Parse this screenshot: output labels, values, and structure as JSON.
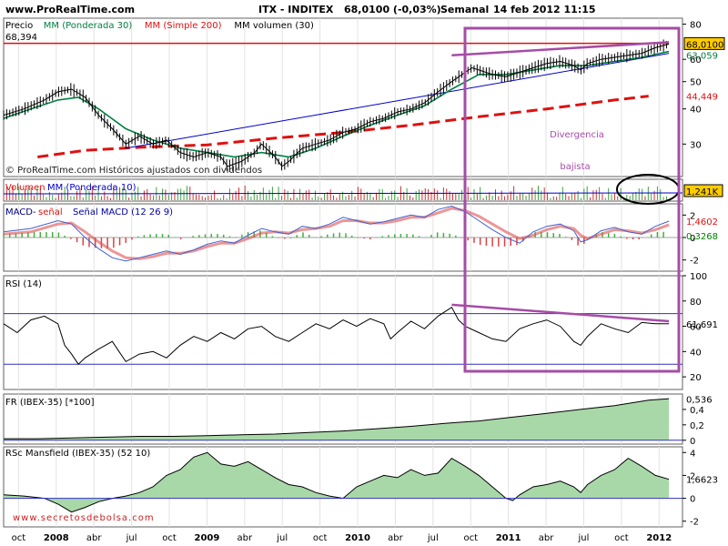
{
  "header": {
    "site": "www.ProRealTime.com",
    "title": "ITX - INDITEX",
    "price": "68,0100 (-0,03%)",
    "period": "Semanal",
    "datetime": "14 feb 2012 11:15"
  },
  "watermark_top": "© ProRealTime.com  Históricos ajustados con dividendos",
  "watermark_bottom": "www.secretosdebolsa.com",
  "annotation": {
    "line1": "Divergencia",
    "line2": "bajista",
    "color": "#a64ca6"
  },
  "colors": {
    "price": "#000000",
    "mm30": "#008040",
    "mm200": "#e01010",
    "trend": "#0000cc",
    "purple": "#a64ca6",
    "price_badge": "#ffcc00",
    "area_fill": "#a8d8a8",
    "macd_hist_pos": "#40b040",
    "macd_hist_neg": "#e04040"
  },
  "x_axis": {
    "ticks": [
      {
        "label": "oct",
        "bold": false
      },
      {
        "label": "2008",
        "bold": true
      },
      {
        "label": "abr",
        "bold": false
      },
      {
        "label": "jul",
        "bold": false
      },
      {
        "label": "oct",
        "bold": false
      },
      {
        "label": "2009",
        "bold": true
      },
      {
        "label": "abr",
        "bold": false
      },
      {
        "label": "jul",
        "bold": false
      },
      {
        "label": "oct",
        "bold": false
      },
      {
        "label": "2010",
        "bold": true
      },
      {
        "label": "abr",
        "bold": false
      },
      {
        "label": "jul",
        "bold": false
      },
      {
        "label": "oct",
        "bold": false
      },
      {
        "label": "2011",
        "bold": true
      },
      {
        "label": "abr",
        "bold": false
      },
      {
        "label": "jul",
        "bold": false
      },
      {
        "label": "oct",
        "bold": false
      },
      {
        "label": "2012",
        "bold": true
      }
    ]
  },
  "chart_data": [
    {
      "type": "line",
      "legend": [
        "Precio",
        "MM (Ponderada 30)",
        "MM (Simple 200)",
        "MM volumen (30)"
      ],
      "y_ticks": [
        "80",
        "60",
        "50",
        "40",
        "30"
      ],
      "level_label": "68,394",
      "last_price": "68,0100",
      "ma_label": "63,059",
      "ma200_label": "44,449",
      "log_scale": true,
      "ylim": [
        23,
        84
      ],
      "price_points": [
        [
          0,
          38
        ],
        [
          3,
          40
        ],
        [
          6,
          43
        ],
        [
          8,
          46
        ],
        [
          10,
          47
        ],
        [
          12,
          44
        ],
        [
          14,
          38
        ],
        [
          16,
          34
        ],
        [
          18,
          30
        ],
        [
          20,
          32
        ],
        [
          22,
          30
        ],
        [
          24,
          31
        ],
        [
          26,
          28
        ],
        [
          28,
          27
        ],
        [
          30,
          28
        ],
        [
          32,
          27
        ],
        [
          33,
          25
        ],
        [
          35,
          26
        ],
        [
          37,
          28
        ],
        [
          38,
          30
        ],
        [
          40,
          27
        ],
        [
          41,
          25
        ],
        [
          42,
          26
        ],
        [
          44,
          29
        ],
        [
          46,
          30
        ],
        [
          48,
          31
        ],
        [
          50,
          33
        ],
        [
          52,
          34
        ],
        [
          54,
          36
        ],
        [
          56,
          37
        ],
        [
          58,
          39
        ],
        [
          60,
          40
        ],
        [
          62,
          42
        ],
        [
          64,
          46
        ],
        [
          66,
          50
        ],
        [
          68,
          54
        ],
        [
          69,
          56
        ],
        [
          70,
          55
        ],
        [
          72,
          53
        ],
        [
          74,
          52
        ],
        [
          76,
          54
        ],
        [
          78,
          56
        ],
        [
          80,
          58
        ],
        [
          82,
          59
        ],
        [
          84,
          57
        ],
        [
          85,
          55
        ],
        [
          86,
          58
        ],
        [
          88,
          60
        ],
        [
          90,
          61
        ],
        [
          92,
          62
        ],
        [
          94,
          63
        ],
        [
          96,
          66
        ],
        [
          98,
          68
        ]
      ],
      "mm30_points": [
        [
          0,
          37
        ],
        [
          4,
          40
        ],
        [
          8,
          43
        ],
        [
          11,
          44
        ],
        [
          14,
          40
        ],
        [
          18,
          34
        ],
        [
          22,
          31
        ],
        [
          26,
          29
        ],
        [
          30,
          28
        ],
        [
          34,
          27
        ],
        [
          38,
          28
        ],
        [
          42,
          27
        ],
        [
          46,
          29
        ],
        [
          50,
          32
        ],
        [
          54,
          35
        ],
        [
          58,
          38
        ],
        [
          62,
          41
        ],
        [
          66,
          47
        ],
        [
          70,
          53
        ],
        [
          74,
          53
        ],
        [
          78,
          55
        ],
        [
          82,
          57
        ],
        [
          86,
          57
        ],
        [
          90,
          59
        ],
        [
          94,
          61
        ],
        [
          98,
          64
        ]
      ],
      "mm200_points": [
        [
          5,
          27
        ],
        [
          12,
          28.5
        ],
        [
          20,
          29.2
        ],
        [
          30,
          29.8
        ],
        [
          40,
          31.5
        ],
        [
          50,
          33
        ],
        [
          60,
          35
        ],
        [
          70,
          37.5
        ],
        [
          80,
          40
        ],
        [
          90,
          43
        ],
        [
          95,
          44.4
        ]
      ],
      "trend_points": [
        [
          18,
          29
        ],
        [
          98,
          63
        ]
      ],
      "resistance_points": [
        [
          0,
          68.4
        ],
        [
          98,
          68.4
        ]
      ]
    },
    {
      "type": "bar",
      "legend": [
        "Volumen",
        "MM (Ponderada 10)"
      ],
      "value_label": "1,241K"
    },
    {
      "type": "area",
      "name": "MACD",
      "legend": [
        "MACD-",
        "señal",
        "Señal MACD (12 26 9)"
      ],
      "y_ticks": [
        "2",
        "0",
        "-2"
      ],
      "value_labels": [
        "1,4602",
        "0,3268"
      ],
      "ylim": [
        -3,
        3
      ],
      "macd_points": [
        [
          0,
          0.5
        ],
        [
          4,
          0.8
        ],
        [
          8,
          1.5
        ],
        [
          10,
          1.2
        ],
        [
          12,
          0
        ],
        [
          14,
          -1
        ],
        [
          16,
          -1.8
        ],
        [
          18,
          -2.1
        ],
        [
          20,
          -1.8
        ],
        [
          22,
          -1.5
        ],
        [
          24,
          -1.2
        ],
        [
          26,
          -1.5
        ],
        [
          28,
          -1.1
        ],
        [
          30,
          -0.6
        ],
        [
          32,
          -0.3
        ],
        [
          34,
          -0.5
        ],
        [
          36,
          0.2
        ],
        [
          38,
          0.8
        ],
        [
          40,
          0.5
        ],
        [
          42,
          0.3
        ],
        [
          44,
          1
        ],
        [
          46,
          0.8
        ],
        [
          48,
          1.2
        ],
        [
          50,
          1.8
        ],
        [
          52,
          1.5
        ],
        [
          54,
          1.2
        ],
        [
          56,
          1.4
        ],
        [
          58,
          1.7
        ],
        [
          60,
          2
        ],
        [
          62,
          1.8
        ],
        [
          64,
          2.5
        ],
        [
          66,
          2.8
        ],
        [
          68,
          2.3
        ],
        [
          70,
          1.5
        ],
        [
          72,
          0.7
        ],
        [
          74,
          0
        ],
        [
          76,
          -0.5
        ],
        [
          78,
          0.5
        ],
        [
          80,
          1
        ],
        [
          82,
          1.2
        ],
        [
          84,
          0.6
        ],
        [
          85,
          -0.4
        ],
        [
          86,
          -0.2
        ],
        [
          88,
          0.6
        ],
        [
          90,
          0.9
        ],
        [
          92,
          0.5
        ],
        [
          94,
          0.3
        ],
        [
          96,
          1
        ],
        [
          98,
          1.46
        ]
      ],
      "signal_points": [
        [
          0,
          0.3
        ],
        [
          4,
          0.5
        ],
        [
          8,
          1.2
        ],
        [
          10,
          1.3
        ],
        [
          12,
          0.5
        ],
        [
          14,
          -0.4
        ],
        [
          16,
          -1.2
        ],
        [
          18,
          -1.8
        ],
        [
          20,
          -1.9
        ],
        [
          22,
          -1.7
        ],
        [
          24,
          -1.4
        ],
        [
          26,
          -1.4
        ],
        [
          28,
          -1.2
        ],
        [
          30,
          -0.8
        ],
        [
          32,
          -0.5
        ],
        [
          34,
          -0.5
        ],
        [
          36,
          -0.1
        ],
        [
          38,
          0.4
        ],
        [
          40,
          0.5
        ],
        [
          42,
          0.4
        ],
        [
          44,
          0.7
        ],
        [
          46,
          0.8
        ],
        [
          48,
          1
        ],
        [
          50,
          1.5
        ],
        [
          52,
          1.5
        ],
        [
          54,
          1.3
        ],
        [
          56,
          1.3
        ],
        [
          58,
          1.5
        ],
        [
          60,
          1.8
        ],
        [
          62,
          1.8
        ],
        [
          64,
          2.2
        ],
        [
          66,
          2.6
        ],
        [
          68,
          2.4
        ],
        [
          70,
          1.9
        ],
        [
          72,
          1.2
        ],
        [
          74,
          0.5
        ],
        [
          76,
          -0.1
        ],
        [
          78,
          0.2
        ],
        [
          80,
          0.7
        ],
        [
          82,
          1
        ],
        [
          84,
          0.8
        ],
        [
          85,
          0.2
        ],
        [
          86,
          -0.1
        ],
        [
          88,
          0.3
        ],
        [
          90,
          0.7
        ],
        [
          92,
          0.6
        ],
        [
          94,
          0.4
        ],
        [
          96,
          0.7
        ],
        [
          98,
          1.13
        ]
      ]
    },
    {
      "type": "line",
      "name": "RSI",
      "legend": [
        "RSI (14)"
      ],
      "y_ticks": [
        "100",
        "80",
        "60",
        "40",
        "20"
      ],
      "value_label": "61,691",
      "ylim": [
        10,
        100
      ],
      "levels": [
        70,
        30
      ],
      "points": [
        [
          0,
          62
        ],
        [
          2,
          55
        ],
        [
          4,
          65
        ],
        [
          6,
          68
        ],
        [
          8,
          62
        ],
        [
          9,
          45
        ],
        [
          10,
          38
        ],
        [
          11,
          30
        ],
        [
          12,
          35
        ],
        [
          14,
          42
        ],
        [
          16,
          48
        ],
        [
          17,
          40
        ],
        [
          18,
          32
        ],
        [
          20,
          38
        ],
        [
          22,
          40
        ],
        [
          24,
          35
        ],
        [
          26,
          45
        ],
        [
          28,
          52
        ],
        [
          30,
          48
        ],
        [
          32,
          55
        ],
        [
          34,
          50
        ],
        [
          36,
          58
        ],
        [
          38,
          60
        ],
        [
          40,
          52
        ],
        [
          42,
          48
        ],
        [
          44,
          55
        ],
        [
          46,
          62
        ],
        [
          48,
          58
        ],
        [
          50,
          65
        ],
        [
          52,
          60
        ],
        [
          54,
          66
        ],
        [
          56,
          62
        ],
        [
          57,
          50
        ],
        [
          58,
          55
        ],
        [
          60,
          64
        ],
        [
          62,
          58
        ],
        [
          64,
          68
        ],
        [
          66,
          75
        ],
        [
          67,
          65
        ],
        [
          68,
          60
        ],
        [
          70,
          55
        ],
        [
          72,
          50
        ],
        [
          74,
          48
        ],
        [
          76,
          58
        ],
        [
          78,
          62
        ],
        [
          80,
          65
        ],
        [
          82,
          60
        ],
        [
          84,
          48
        ],
        [
          85,
          45
        ],
        [
          86,
          52
        ],
        [
          88,
          62
        ],
        [
          90,
          58
        ],
        [
          92,
          55
        ],
        [
          94,
          63
        ],
        [
          96,
          62
        ],
        [
          98,
          62
        ]
      ],
      "divergence_line": [
        [
          66,
          77
        ],
        [
          98,
          64
        ]
      ]
    },
    {
      "type": "area",
      "name": "FR (IBEX-35)",
      "legend": [
        "FR (IBEX-35) [*100]"
      ],
      "y_ticks": [
        "0,4",
        "0,2",
        "0"
      ],
      "value_label": "0,536",
      "ylim": [
        -0.05,
        0.6
      ],
      "points": [
        [
          0,
          0.02
        ],
        [
          5,
          0.02
        ],
        [
          10,
          0.03
        ],
        [
          15,
          0.04
        ],
        [
          20,
          0.05
        ],
        [
          25,
          0.05
        ],
        [
          30,
          0.06
        ],
        [
          35,
          0.07
        ],
        [
          40,
          0.08
        ],
        [
          45,
          0.1
        ],
        [
          50,
          0.12
        ],
        [
          55,
          0.15
        ],
        [
          60,
          0.18
        ],
        [
          65,
          0.22
        ],
        [
          70,
          0.25
        ],
        [
          75,
          0.3
        ],
        [
          80,
          0.35
        ],
        [
          85,
          0.4
        ],
        [
          90,
          0.45
        ],
        [
          95,
          0.52
        ],
        [
          98,
          0.54
        ]
      ]
    },
    {
      "type": "area",
      "name": "RSc Mansfield",
      "legend": [
        "RSc Mansfield (IBEX-35) (52 10)"
      ],
      "y_ticks": [
        "4",
        "2",
        "0",
        "-2"
      ],
      "value_label": "1,6623",
      "ylim": [
        -2.5,
        4.5
      ],
      "points": [
        [
          0,
          0.3
        ],
        [
          3,
          0.2
        ],
        [
          6,
          0
        ],
        [
          8,
          -0.5
        ],
        [
          10,
          -1.2
        ],
        [
          12,
          -0.8
        ],
        [
          14,
          -0.3
        ],
        [
          16,
          0
        ],
        [
          18,
          0.2
        ],
        [
          20,
          0.5
        ],
        [
          22,
          1
        ],
        [
          24,
          2
        ],
        [
          26,
          2.5
        ],
        [
          28,
          3.6
        ],
        [
          30,
          4
        ],
        [
          32,
          3
        ],
        [
          34,
          2.8
        ],
        [
          36,
          3.2
        ],
        [
          38,
          2.5
        ],
        [
          40,
          1.8
        ],
        [
          42,
          1.2
        ],
        [
          44,
          1
        ],
        [
          46,
          0.5
        ],
        [
          48,
          0.2
        ],
        [
          50,
          0
        ],
        [
          52,
          1
        ],
        [
          54,
          1.5
        ],
        [
          56,
          2
        ],
        [
          58,
          1.8
        ],
        [
          60,
          2.5
        ],
        [
          62,
          2
        ],
        [
          64,
          2.2
        ],
        [
          66,
          3.5
        ],
        [
          68,
          2.8
        ],
        [
          70,
          2
        ],
        [
          72,
          1
        ],
        [
          74,
          0
        ],
        [
          75,
          -0.2
        ],
        [
          76,
          0.3
        ],
        [
          78,
          1
        ],
        [
          80,
          1.2
        ],
        [
          82,
          1.5
        ],
        [
          84,
          1
        ],
        [
          85,
          0.5
        ],
        [
          86,
          1.2
        ],
        [
          88,
          2
        ],
        [
          90,
          2.5
        ],
        [
          92,
          3.5
        ],
        [
          94,
          2.8
        ],
        [
          96,
          2
        ],
        [
          98,
          1.66
        ]
      ]
    }
  ]
}
